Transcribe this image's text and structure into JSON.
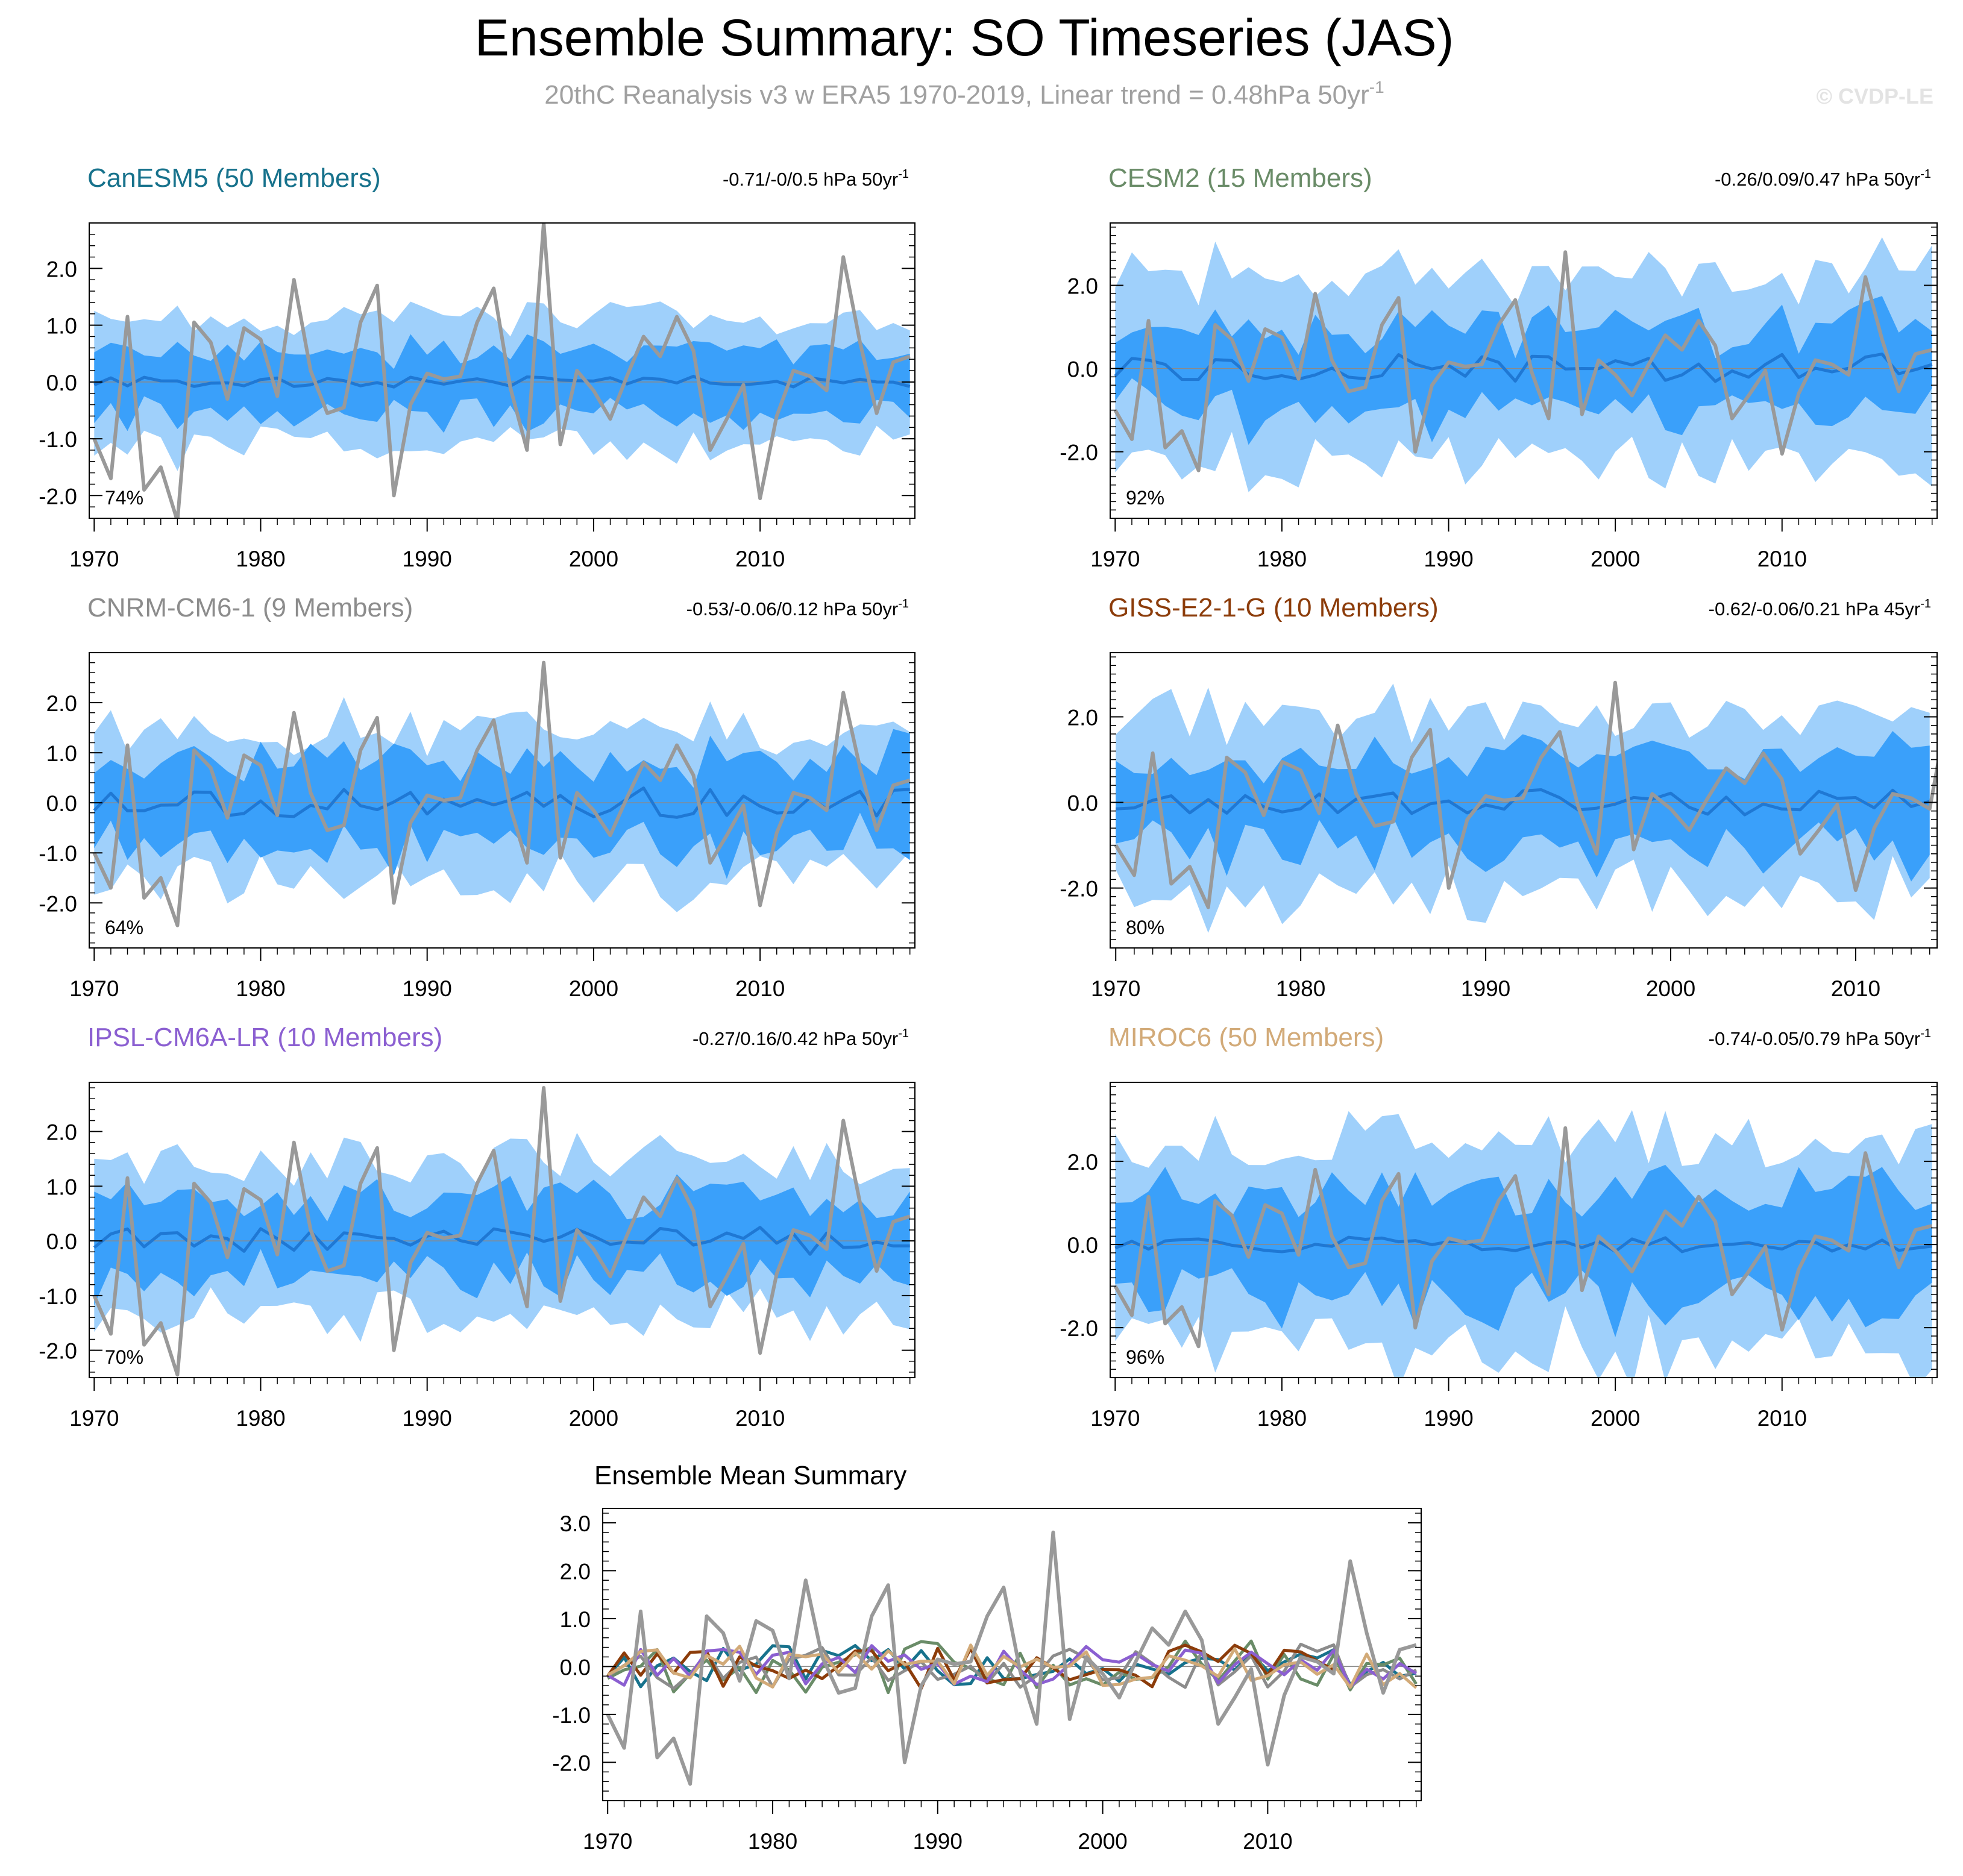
{
  "header": {
    "title": "Ensemble Summary: SO Timeseries (JAS)",
    "subtitle_main": "20thC Reanalysis v3 w ERA5 1970-2019, Linear trend = 0.48hPa 50yr",
    "subtitle_sup": "-1",
    "watermark": "© CVDP-LE"
  },
  "style": {
    "spread_outer_color": "#9fd0fb",
    "spread_inner_color": "#3aa0fa",
    "ens_mean_color": "#1f78d4",
    "obs_color": "#999999",
    "zero_line_color": "#8a8a8a"
  },
  "chart_data": {
    "type": "line",
    "years": [
      1970,
      1971,
      1972,
      1973,
      1974,
      1975,
      1976,
      1977,
      1978,
      1979,
      1980,
      1981,
      1982,
      1983,
      1984,
      1985,
      1986,
      1987,
      1988,
      1989,
      1990,
      1991,
      1992,
      1993,
      1994,
      1995,
      1996,
      1997,
      1998,
      1999,
      2000,
      2001,
      2002,
      2003,
      2004,
      2005,
      2006,
      2007,
      2008,
      2009,
      2010,
      2011,
      2012,
      2013,
      2014,
      2015,
      2016,
      2017,
      2018,
      2019
    ],
    "observation": {
      "name": "20thC Reanalysis v3 w ERA5",
      "values": [
        -1.0,
        -1.7,
        1.15,
        -1.9,
        -1.5,
        -2.45,
        1.05,
        0.7,
        -0.3,
        0.95,
        0.75,
        -0.25,
        1.8,
        0.2,
        -0.55,
        -0.45,
        1.05,
        1.7,
        -2.0,
        -0.4,
        0.15,
        0.05,
        0.1,
        1.05,
        1.65,
        -0.1,
        -1.2,
        2.8,
        -1.1,
        0.2,
        -0.15,
        -0.65,
        0.1,
        0.8,
        0.45,
        1.15,
        0.55,
        -1.2,
        -0.65,
        -0.05,
        -2.05,
        -0.6,
        0.2,
        0.1,
        -0.15,
        2.2,
        0.7,
        -0.55,
        0.35,
        0.45
      ]
    },
    "panels": [
      {
        "name": "CanESM5 (50 Members)",
        "color": "#17728c",
        "trend_text": "-0.71/-0/0.5 hPa 50yr",
        "trend_sup": "-1",
        "percent": "74%",
        "ylim": [
          -2.4,
          2.8
        ],
        "yticks": [
          2.0,
          1.0,
          0.0,
          -1.0,
          -2.0
        ],
        "ytick_labels": [
          "2.0",
          "1.0",
          "0.0",
          "-1.0",
          "-2.0"
        ],
        "xlim": [
          1969.7,
          2019.3
        ],
        "xticks": [
          1970,
          1980,
          1990,
          2000,
          2010
        ],
        "xtick_labels": [
          "1970",
          "1980",
          "1990",
          "2000",
          "2010"
        ],
        "outer_amp": 1.1,
        "inner_amp": 0.55,
        "mean_amp": 0.1,
        "seed": 3
      },
      {
        "name": "CESM2 (15 Members)",
        "color": "#6a8c68",
        "trend_text": "-0.26/0.09/0.47 hPa 50yr",
        "trend_sup": "-1",
        "percent": "92%",
        "ylim": [
          -3.6,
          3.5
        ],
        "yticks": [
          2.0,
          0.0,
          -2.0
        ],
        "ytick_labels": [
          "2.0",
          "0.0",
          "-2.0"
        ],
        "xlim": [
          1969.7,
          2019.3
        ],
        "xticks": [
          1970,
          1980,
          1990,
          2000,
          2010
        ],
        "xtick_labels": [
          "1970",
          "1980",
          "1990",
          "2000",
          "2010"
        ],
        "outer_amp": 2.3,
        "inner_amp": 1.0,
        "mean_amp": 0.35,
        "seed": 11
      },
      {
        "name": "CNRM-CM6-1 (9 Members)",
        "color": "#8c8c8c",
        "trend_text": "-0.53/-0.06/0.12 hPa 50yr",
        "trend_sup": "-1",
        "percent": "64%",
        "ylim": [
          -2.9,
          3.0
        ],
        "yticks": [
          2.0,
          1.0,
          0.0,
          -1.0,
          -2.0
        ],
        "ytick_labels": [
          "2.0",
          "1.0",
          "0.0",
          "-1.0",
          "-2.0"
        ],
        "xlim": [
          1969.7,
          2019.3
        ],
        "xticks": [
          1970,
          1980,
          1990,
          2000,
          2010
        ],
        "xtick_labels": [
          "1970",
          "1980",
          "1990",
          "2000",
          "2010"
        ],
        "outer_amp": 1.5,
        "inner_amp": 0.85,
        "mean_amp": 0.3,
        "seed": 23
      },
      {
        "name": "GISS-E2-1-G (10 Members)",
        "color": "#8c3c0a",
        "trend_text": "-0.62/-0.06/0.21 hPa 45yr",
        "trend_sup": "-1",
        "percent": "80%",
        "ylim": [
          -3.4,
          3.5
        ],
        "yticks": [
          2.0,
          0.0,
          -2.0
        ],
        "ytick_labels": [
          "2.0",
          "0.0",
          "-2.0"
        ],
        "xlim": [
          1969.7,
          2014.4
        ],
        "xticks": [
          1970,
          1980,
          1990,
          2000,
          2010
        ],
        "xtick_labels": [
          "1970",
          "1980",
          "1990",
          "2000",
          "2010"
        ],
        "outer_amp": 2.1,
        "inner_amp": 1.0,
        "mean_amp": 0.3,
        "seed": 37
      },
      {
        "name": "IPSL-CM6A-LR (10 Members)",
        "color": "#8b5fd1",
        "trend_text": "-0.27/0.16/0.42 hPa 50yr",
        "trend_sup": "-1",
        "percent": "70%",
        "ylim": [
          -2.5,
          2.9
        ],
        "yticks": [
          2.0,
          1.0,
          0.0,
          -1.0,
          -2.0
        ],
        "ytick_labels": [
          "2.0",
          "1.0",
          "0.0",
          "-1.0",
          "-2.0"
        ],
        "xlim": [
          1969.7,
          2019.3
        ],
        "xticks": [
          1970,
          1980,
          1990,
          2000,
          2010
        ],
        "xtick_labels": [
          "1970",
          "1980",
          "1990",
          "2000",
          "2010"
        ],
        "outer_amp": 1.45,
        "inner_amp": 0.75,
        "mean_amp": 0.25,
        "seed": 51
      },
      {
        "name": "MIROC6 (50 Members)",
        "color": "#d2aa78",
        "trend_text": "-0.74/-0.05/0.79 hPa 50yr",
        "trend_sup": "-1",
        "percent": "96%",
        "ylim": [
          -3.2,
          3.9
        ],
        "yticks": [
          2.0,
          0.0,
          -2.0
        ],
        "ytick_labels": [
          "2.0",
          "0.0",
          "-2.0"
        ],
        "xlim": [
          1969.7,
          2019.3
        ],
        "xticks": [
          1970,
          1980,
          1990,
          2000,
          2010
        ],
        "xtick_labels": [
          "1970",
          "1980",
          "1990",
          "2000",
          "2010"
        ],
        "outer_amp": 2.5,
        "inner_amp": 1.25,
        "mean_amp": 0.18,
        "seed": 67
      }
    ],
    "summary": {
      "title": "Ensemble Mean Summary",
      "ylim": [
        -2.8,
        3.3
      ],
      "yticks": [
        3.0,
        2.0,
        1.0,
        0.0,
        -1.0,
        -2.0
      ],
      "ytick_labels": [
        "3.0",
        "2.0",
        "1.0",
        "0.0",
        "-1.0",
        "-2.0"
      ],
      "xlim": [
        1969.7,
        2019.3
      ],
      "xticks": [
        1970,
        1980,
        1990,
        2000,
        2010
      ],
      "xtick_labels": [
        "1970",
        "1980",
        "1990",
        "2000",
        "2010"
      ]
    }
  }
}
